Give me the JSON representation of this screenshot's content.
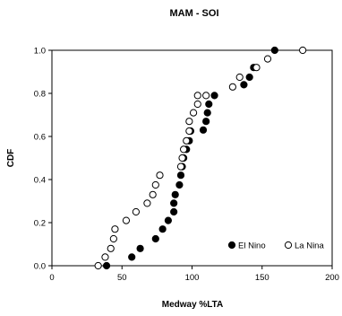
{
  "chart_data": {
    "type": "scatter",
    "title": "MAM - SOI",
    "xlabel": "Medway %LTA",
    "ylabel": "CDF",
    "xlim": [
      0,
      200
    ],
    "ylim": [
      0,
      1.0
    ],
    "xticks": [
      "0",
      "50",
      "100",
      "150",
      "200"
    ],
    "yticks": [
      "0.0",
      "0.2",
      "0.4",
      "0.6",
      "0.8",
      "1.0"
    ],
    "grid": false,
    "legend_position": "bottom-right",
    "series": [
      {
        "name": "El Nino",
        "marker": "filled-circle",
        "color": "#000000",
        "x": [
          39,
          57,
          63,
          74,
          79,
          83,
          87,
          87,
          88,
          91,
          92,
          93,
          94,
          96,
          98,
          99,
          108,
          110,
          111,
          112,
          116,
          137,
          141,
          144,
          159
        ],
        "y": [
          0.0,
          0.04,
          0.08,
          0.125,
          0.17,
          0.21,
          0.25,
          0.29,
          0.33,
          0.375,
          0.42,
          0.46,
          0.5,
          0.54,
          0.58,
          0.625,
          0.63,
          0.67,
          0.71,
          0.75,
          0.79,
          0.84,
          0.875,
          0.92,
          1.0
        ]
      },
      {
        "name": "La Nina",
        "marker": "open-circle",
        "color": "#000000",
        "x": [
          33,
          38,
          42,
          44,
          45,
          53,
          60,
          68,
          72,
          74,
          77,
          92,
          93,
          94,
          96,
          98,
          98,
          101,
          104,
          104,
          110,
          129,
          134,
          146,
          154,
          179
        ],
        "y": [
          0.0,
          0.04,
          0.08,
          0.125,
          0.17,
          0.21,
          0.25,
          0.29,
          0.33,
          0.375,
          0.42,
          0.46,
          0.5,
          0.54,
          0.58,
          0.625,
          0.67,
          0.71,
          0.75,
          0.79,
          0.79,
          0.83,
          0.875,
          0.92,
          0.96,
          1.0
        ]
      }
    ]
  }
}
